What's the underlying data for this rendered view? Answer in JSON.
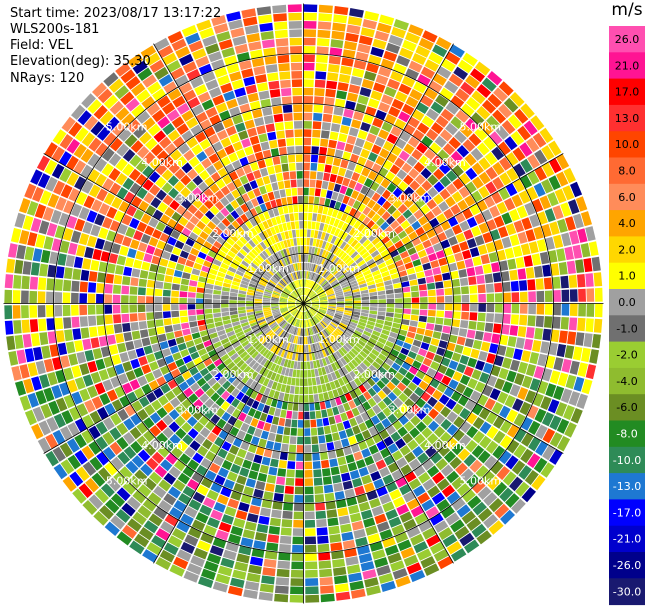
{
  "header": {
    "start_time": "Start time: 2023/08/17 13:17:22",
    "instrument": "WLS200s-181",
    "field": "Field: VEL",
    "elevation": "Elevation(deg): 35.30",
    "nrays": "NRays: 120"
  },
  "chart_data": {
    "type": "heatmap",
    "projection": "polar-ppi",
    "field": "VEL",
    "units": "m/s",
    "n_rays": 120,
    "n_gates": 36,
    "max_range_km": 6.0,
    "range_ring_labels": [
      "1.00km",
      "2.00km",
      "3.00km",
      "4.00km",
      "5.00km"
    ],
    "colorbar": {
      "units": "m/s",
      "ticks": [
        "26.0",
        "21.0",
        "17.0",
        "13.0",
        "10.0",
        "8.0",
        "6.0",
        "4.0",
        "2.0",
        "1.0",
        "0.0",
        "-1.0",
        "-2.0",
        "-4.0",
        "-6.0",
        "-8.0",
        "-10.0",
        "-13.0",
        "-17.0",
        "-21.0",
        "-26.0",
        "-30.0"
      ],
      "colors": [
        "#ff4fb0",
        "#ff1493",
        "#ff0000",
        "#ff3030",
        "#ff4500",
        "#ff6a33",
        "#ff8c5a",
        "#ffa500",
        "#ffd700",
        "#ffff00",
        "#a0a0a0",
        "#707070",
        "#9acd32",
        "#8fbc2f",
        "#6b8e23",
        "#228b22",
        "#2e8b57",
        "#1e78d2",
        "#0000ff",
        "#0000cd",
        "#00008b",
        "#191970"
      ]
    }
  }
}
